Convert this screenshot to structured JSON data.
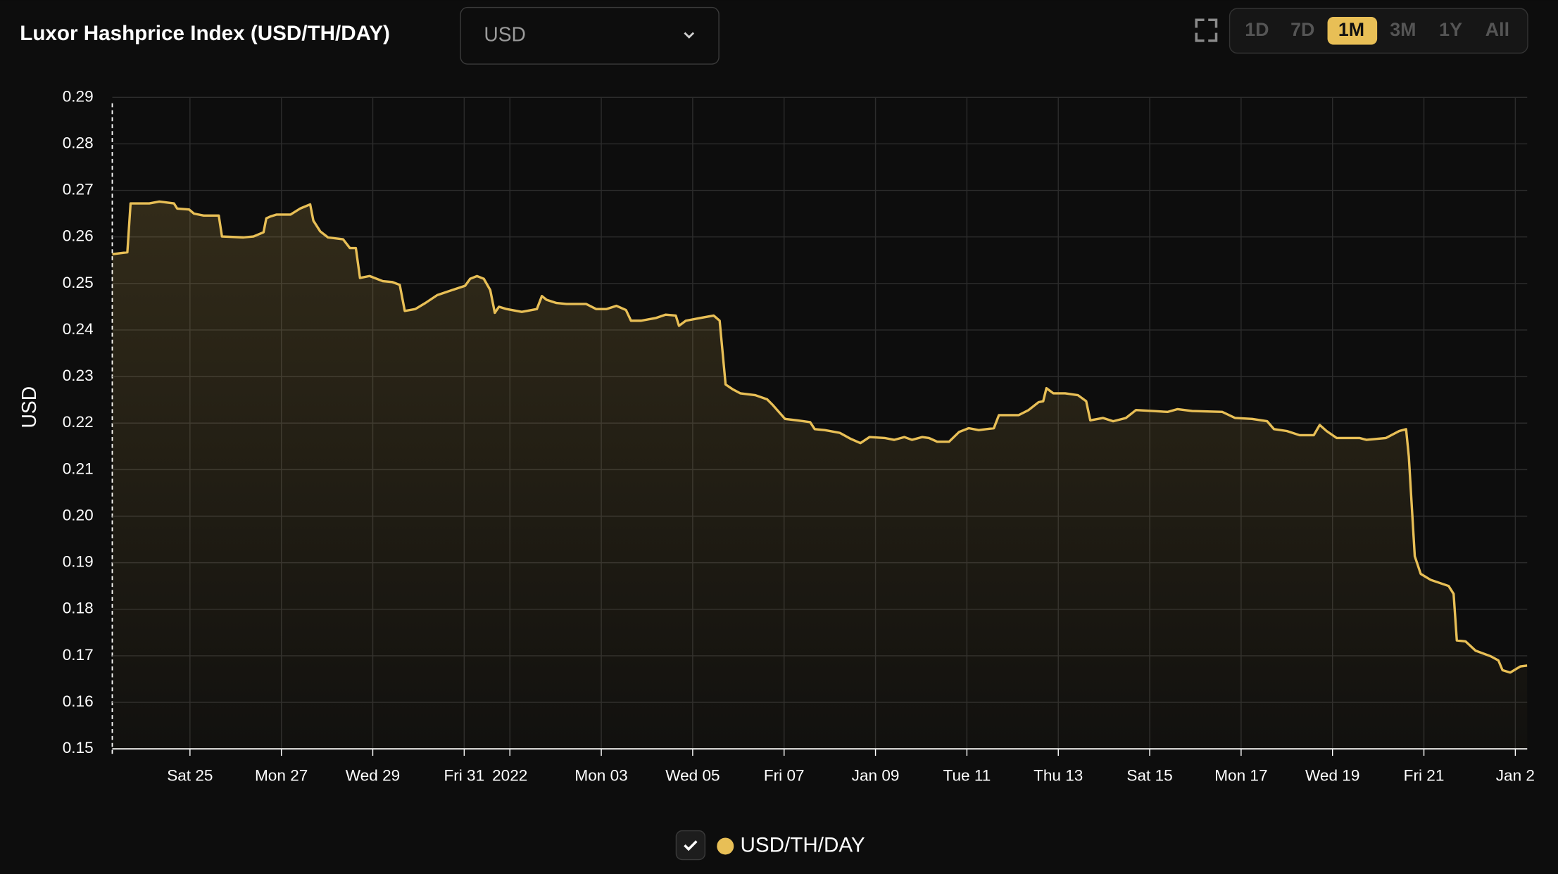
{
  "chart_data": {
    "type": "line",
    "title": "Luxor Hashprice Index (USD/TH/DAY)",
    "currency_select": "USD",
    "range_buttons": [
      "1D",
      "7D",
      "1M",
      "3M",
      "1Y",
      "All"
    ],
    "active_range": "1M",
    "y_label": "USD",
    "area": true,
    "grid": true,
    "x": [
      23.3,
      23.63,
      23.7,
      24.11,
      24.33,
      24.65,
      24.72,
      24.98,
      25.09,
      25.3,
      25.63,
      25.7,
      26.17,
      26.39,
      26.61,
      26.67,
      26.76,
      26.89,
      27.2,
      27.41,
      27.63,
      27.7,
      27.85,
      28.02,
      28.35,
      28.5,
      28.63,
      28.72,
      28.93,
      29.22,
      29.43,
      29.59,
      29.7,
      29.93,
      30.15,
      30.41,
      30.74,
      31.02,
      31.13,
      31.28,
      31.43,
      31.57,
      31.67,
      31.76,
      31.93,
      32.26,
      32.59,
      32.7,
      32.8,
      33.02,
      33.24,
      33.46,
      33.67,
      33.89,
      34.11,
      34.33,
      34.54,
      34.65,
      34.87,
      35.2,
      35.41,
      35.63,
      35.7,
      35.85,
      36.17,
      36.46,
      36.59,
      36.72,
      36.87,
      37.04,
      37.37,
      37.63,
      37.76,
      38.02,
      38.28,
      38.57,
      38.67,
      38.89,
      39.22,
      39.46,
      39.67,
      39.87,
      40.2,
      40.41,
      40.63,
      40.8,
      41.02,
      41.17,
      41.35,
      41.61,
      41.83,
      42.04,
      42.26,
      42.59,
      42.7,
      42.91,
      43.13,
      43.35,
      43.57,
      43.67,
      43.74,
      43.89,
      44.15,
      44.43,
      44.61,
      44.7,
      44.98,
      45.2,
      45.48,
      45.7,
      46.07,
      46.39,
      46.61,
      46.93,
      47.59,
      47.87,
      48.24,
      48.57,
      48.72,
      49.0,
      49.28,
      49.59,
      49.72,
      49.87,
      50.09,
      50.59,
      50.74,
      51.17,
      51.46,
      51.61,
      51.67,
      51.8,
      51.93,
      52.15,
      52.54,
      52.65,
      52.72,
      52.91,
      53.13,
      53.46,
      53.63,
      53.72,
      53.89,
      54.11,
      54.26
    ],
    "series": [
      {
        "name": "USD/TH/DAY",
        "color": "#e8bf56",
        "values": [
          0.2563,
          0.2567,
          0.2672,
          0.2672,
          0.2676,
          0.2672,
          0.2661,
          0.2659,
          0.265,
          0.2646,
          0.2646,
          0.2601,
          0.2599,
          0.2601,
          0.261,
          0.264,
          0.2644,
          0.2648,
          0.2648,
          0.2661,
          0.267,
          0.2635,
          0.2612,
          0.2599,
          0.2595,
          0.2576,
          0.2576,
          0.2512,
          0.2516,
          0.2505,
          0.2503,
          0.2497,
          0.2441,
          0.2445,
          0.2458,
          0.2475,
          0.2486,
          0.2495,
          0.251,
          0.2516,
          0.251,
          0.2486,
          0.2437,
          0.245,
          0.2445,
          0.2439,
          0.2445,
          0.2473,
          0.2465,
          0.2458,
          0.2456,
          0.2456,
          0.2456,
          0.2445,
          0.2445,
          0.2452,
          0.2443,
          0.242,
          0.242,
          0.2426,
          0.2433,
          0.2431,
          0.2409,
          0.242,
          0.2426,
          0.2431,
          0.242,
          0.2283,
          0.2273,
          0.2264,
          0.226,
          0.2251,
          0.2238,
          0.2209,
          0.2206,
          0.2202,
          0.2187,
          0.2185,
          0.2179,
          0.2166,
          0.2157,
          0.217,
          0.2168,
          0.2164,
          0.217,
          0.2164,
          0.217,
          0.2168,
          0.216,
          0.216,
          0.2181,
          0.2189,
          0.2185,
          0.2189,
          0.2217,
          0.2217,
          0.2217,
          0.2228,
          0.2245,
          0.2247,
          0.2275,
          0.2264,
          0.2264,
          0.226,
          0.2247,
          0.2206,
          0.2211,
          0.2204,
          0.2211,
          0.2228,
          0.2226,
          0.2224,
          0.223,
          0.2226,
          0.2224,
          0.2211,
          0.2209,
          0.2204,
          0.2187,
          0.2183,
          0.2174,
          0.2174,
          0.2196,
          0.2183,
          0.2168,
          0.2168,
          0.2164,
          0.2168,
          0.2183,
          0.2187,
          0.2128,
          0.1914,
          0.1876,
          0.1863,
          0.185,
          0.1833,
          0.1733,
          0.1731,
          0.1711,
          0.1699,
          0.169,
          0.1669,
          0.1664,
          0.1677,
          0.1679
        ]
      }
    ],
    "xlim": [
      23.3,
      54.26
    ],
    "xticks": [
      {
        "value": 25,
        "label": "Sat 25"
      },
      {
        "value": 27,
        "label": "Mon 27"
      },
      {
        "value": 29,
        "label": "Wed 29"
      },
      {
        "value": 31,
        "label": "Fri 31"
      },
      {
        "value": 32,
        "label": "2022"
      },
      {
        "value": 34,
        "label": "Mon 03"
      },
      {
        "value": 36,
        "label": "Wed 05"
      },
      {
        "value": 38,
        "label": "Fri 07"
      },
      {
        "value": 40,
        "label": "Jan 09"
      },
      {
        "value": 42,
        "label": "Tue 11"
      },
      {
        "value": 44,
        "label": "Thu 13"
      },
      {
        "value": 46,
        "label": "Sat 15"
      },
      {
        "value": 48,
        "label": "Mon 17"
      },
      {
        "value": 50,
        "label": "Wed 19"
      },
      {
        "value": 52,
        "label": "Fri 21"
      },
      {
        "value": 54,
        "label": "Jan 2"
      }
    ],
    "ylim": [
      0.15,
      0.29
    ],
    "yticks": [
      0.15,
      0.16,
      0.17,
      0.18,
      0.19,
      {
        "value": 0.2,
        "label": "0.20"
      },
      0.21,
      0.22,
      0.23,
      0.24,
      0.25,
      0.26,
      0.27,
      0.28,
      0.29
    ]
  }
}
